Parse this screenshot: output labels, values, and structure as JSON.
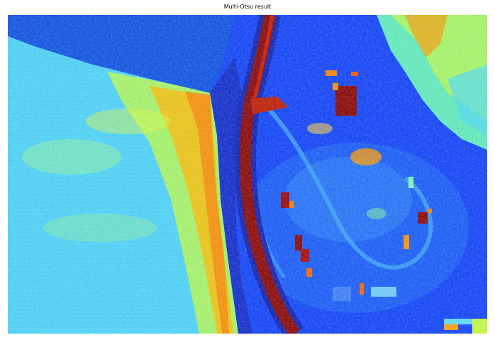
{
  "figure": {
    "title": "Multi-Otsu result",
    "colormap": "jet",
    "colors": {
      "dark_blue": "#00008f",
      "blue": "#0030ff",
      "mid_blue": "#1060ff",
      "light_blue": "#3db0ff",
      "cyan": "#49e9ff",
      "aqua_green": "#7dffb5",
      "yellow": "#e8ff30",
      "orange": "#ffa000",
      "red": "#e02000",
      "dark_red": "#800000"
    }
  }
}
